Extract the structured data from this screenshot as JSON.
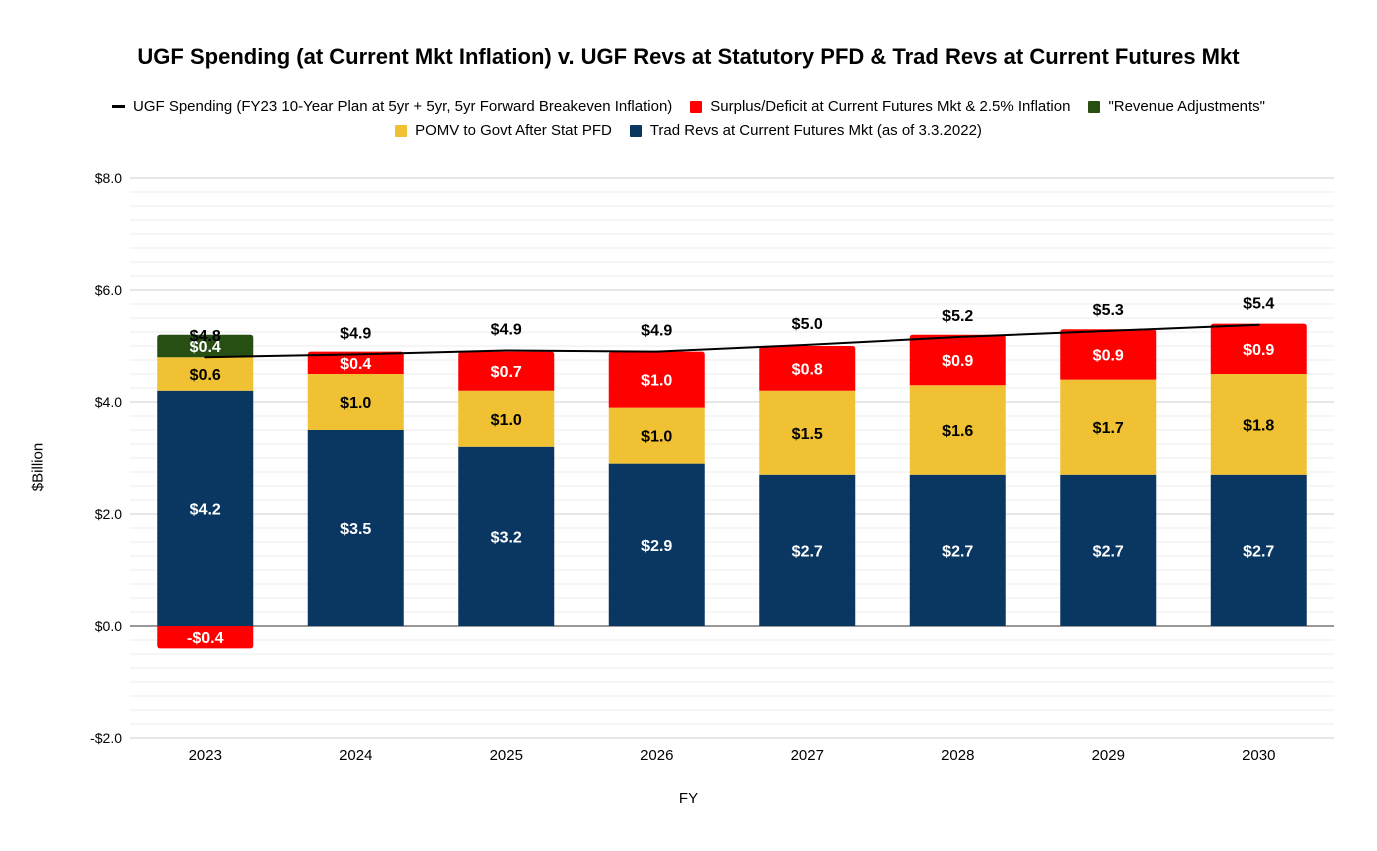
{
  "chart_data": {
    "type": "bar",
    "stacked": true,
    "title": "UGF Spending (at Current Mkt Inflation) v. UGF Revs at Statutory PFD & Trad Revs at Current Futures Mkt",
    "xlabel": "FY",
    "ylabel": "$Billion",
    "ylim": [
      -2.0,
      8.0
    ],
    "yticks": [
      -2.0,
      0.0,
      2.0,
      4.0,
      6.0,
      8.0
    ],
    "ytick_labels": [
      "-$2.0",
      "$0.0",
      "$2.0",
      "$4.0",
      "$6.0",
      "$8.0"
    ],
    "grid": true,
    "legend_position": "top",
    "categories": [
      "2023",
      "2024",
      "2025",
      "2026",
      "2027",
      "2028",
      "2029",
      "2030"
    ],
    "series": [
      {
        "name": "Trad Revs at Current Futures Mkt (as of 3.3.2022)",
        "type": "bar",
        "color": "#0a3761",
        "values": [
          4.2,
          3.5,
          3.2,
          2.9,
          2.7,
          2.7,
          2.7,
          2.7
        ],
        "labels": [
          "$4.2",
          "$3.5",
          "$3.2",
          "$2.9",
          "$2.7",
          "$2.7",
          "$2.7",
          "$2.7"
        ]
      },
      {
        "name": "POMV to Govt After Stat PFD",
        "type": "bar",
        "color": "#f0c132",
        "values": [
          0.6,
          1.0,
          1.0,
          1.0,
          1.5,
          1.6,
          1.7,
          1.8
        ],
        "labels": [
          "$0.6",
          "$1.0",
          "$1.0",
          "$1.0",
          "$1.5",
          "$1.6",
          "$1.7",
          "$1.8"
        ]
      },
      {
        "name": "Surplus/Deficit at Current Futures Mkt & 2.5% Inflation",
        "type": "bar",
        "color": "#ff0000",
        "values": [
          -0.4,
          0.4,
          0.7,
          1.0,
          0.8,
          0.9,
          0.9,
          0.9
        ],
        "labels": [
          "-$0.4",
          "$0.4",
          "$0.7",
          "$1.0",
          "$0.8",
          "$0.9",
          "$0.9",
          "$0.9"
        ]
      },
      {
        "name": "\"Revenue Adjustments\"",
        "type": "bar",
        "color": "#274e13",
        "values": [
          0.4,
          0,
          0,
          0,
          0,
          0,
          0,
          0
        ],
        "labels": [
          "$0.4",
          "",
          "",
          "",
          "",
          "",
          "",
          ""
        ]
      },
      {
        "name": "UGF Spending (FY23 10-Year Plan at 5yr + 5yr, 5yr Forward Breakeven Inflation)",
        "type": "line",
        "color": "#000000",
        "values": [
          4.8,
          4.85,
          4.92,
          4.9,
          5.02,
          5.16,
          5.27,
          5.38
        ],
        "labels": [
          "$4.8",
          "$4.9",
          "$4.9",
          "$4.9",
          "$5.0",
          "$5.2",
          "$5.3",
          "$5.4"
        ]
      }
    ],
    "legend_rows": [
      [
        "UGF Spending (FY23 10-Year Plan at 5yr + 5yr, 5yr Forward Breakeven Inflation)",
        "Surplus/Deficit at Current Futures Mkt & 2.5% Inflation",
        "\"Revenue Adjustments\""
      ],
      [
        "POMV to Govt After Stat PFD",
        "Trad Revs at Current Futures Mkt (as of 3.3.2022)"
      ]
    ]
  }
}
